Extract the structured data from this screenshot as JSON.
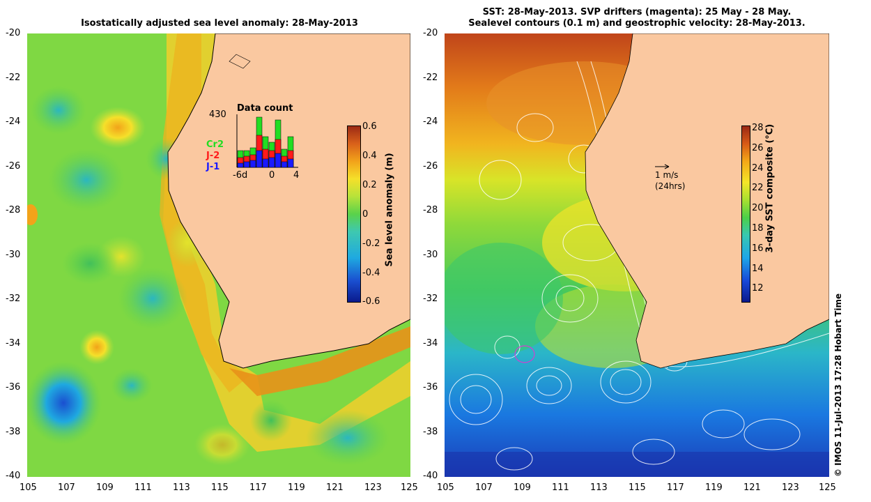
{
  "left": {
    "title": "Isostatically adjusted sea level anomaly: 28-May-2013",
    "colorbar_label": "Sea level anomaly (m)",
    "colorbar_ticks": [
      "0.6",
      "0.4",
      "0.2",
      "0",
      "-0.2",
      "-0.4",
      "-0.6"
    ],
    "colorbar_values": [
      0.6,
      0.4,
      0.2,
      0,
      -0.2,
      -0.4,
      -0.6
    ],
    "colorbar_range": [
      -0.6,
      0.6
    ],
    "inset": {
      "title": "Data count",
      "max": "430",
      "x_ticks": [
        "-6d",
        "0",
        "4"
      ],
      "legend": [
        {
          "label": "Cr2",
          "color": "#22dd22"
        },
        {
          "label": "J-2",
          "color": "#ff1a1a"
        },
        {
          "label": "J-1",
          "color": "#1a1aff"
        }
      ]
    }
  },
  "right": {
    "title_line1": "SST: 28-May-2013. SVP drifters (magenta): 25 May - 28 May.",
    "title_line2": "Sealevel contours (0.1 m) and geostrophic velocity: 28-May-2013.",
    "colorbar_label": "3-day SST composite (°C)",
    "colorbar_ticks": [
      "28",
      "26",
      "24",
      "22",
      "20",
      "18",
      "16",
      "14",
      "12"
    ],
    "colorbar_values": [
      28,
      26,
      24,
      22,
      20,
      18,
      16,
      14,
      12
    ],
    "colorbar_range": [
      11,
      28.5
    ],
    "scale_arrow_label": "1 m/s",
    "scale_arrow_sublabel": "(24hrs)"
  },
  "axes": {
    "lat_range": [
      -40,
      -20
    ],
    "lon_range": [
      105,
      125
    ],
    "y_ticks": [
      "-20",
      "-22",
      "-24",
      "-26",
      "-28",
      "-30",
      "-32",
      "-34",
      "-36",
      "-38",
      "-40"
    ],
    "y_values": [
      -20,
      -22,
      -24,
      -26,
      -28,
      -30,
      -32,
      -34,
      -36,
      -38,
      -40
    ],
    "x_ticks": [
      "105",
      "107",
      "109",
      "111",
      "113",
      "115",
      "117",
      "119",
      "121",
      "123",
      "125"
    ],
    "x_values": [
      105,
      107,
      109,
      111,
      113,
      115,
      117,
      119,
      121,
      123,
      125
    ]
  },
  "credit": "© IMOS 11-Jul-2013 17:28 Hobart Time",
  "colors": {
    "land": "#fac8a0",
    "sla_ramp": [
      "#0a1a8c",
      "#1a4fd0",
      "#1fa9e0",
      "#3ec8b0",
      "#5ad24a",
      "#b7e23a",
      "#f5e02a",
      "#f2a31a",
      "#d9611a",
      "#9c2a14"
    ],
    "sst_ramp": [
      "#0a1a8c",
      "#1848d8",
      "#1ea6e8",
      "#38c8b0",
      "#4cd048",
      "#a8e030",
      "#f4e628",
      "#f4a818",
      "#d85a16",
      "#9a2814"
    ]
  }
}
